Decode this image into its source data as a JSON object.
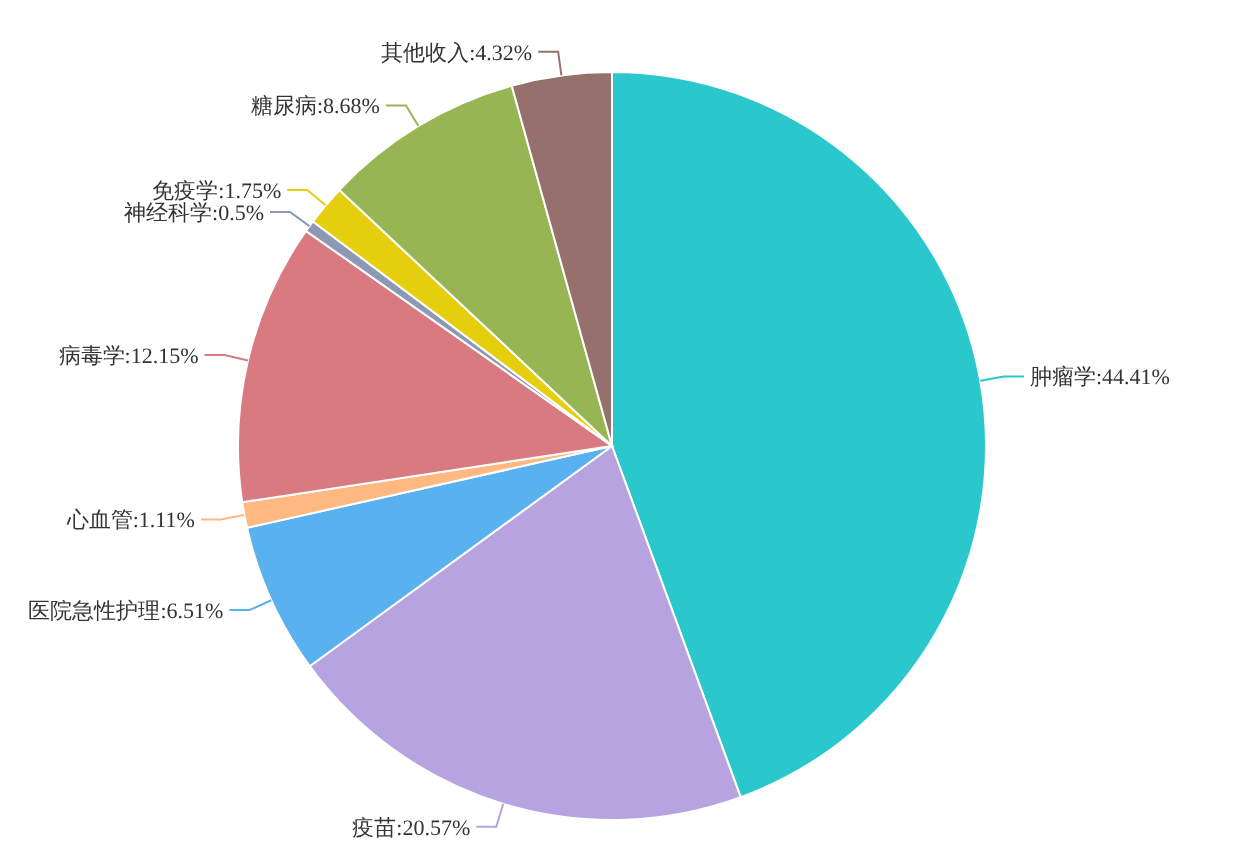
{
  "chart_data": {
    "type": "pie",
    "categories": [
      "肿瘤学",
      "疫苗",
      "医院急性护理",
      "心血管",
      "病毒学",
      "神经科学",
      "免疫学",
      "糖尿病",
      "其他收入"
    ],
    "values": [
      44.41,
      20.57,
      6.51,
      1.11,
      12.15,
      0.5,
      1.75,
      8.68,
      4.32
    ],
    "value_labels": [
      "44.41%",
      "20.57%",
      "6.51%",
      "1.11%",
      "12.15%",
      "0.5%",
      "1.75%",
      "8.68%",
      "4.32%"
    ],
    "colors": [
      "#2ac8cc",
      "#b7a3e0",
      "#5ab1ef",
      "#ffb980",
      "#d87a80",
      "#8d98b3",
      "#e5cf0d",
      "#97b552",
      "#95706d"
    ],
    "legend": false
  }
}
